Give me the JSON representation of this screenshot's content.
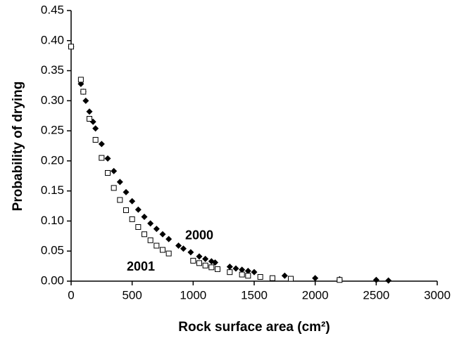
{
  "chart_data": {
    "type": "scatter",
    "xlabel": "Rock surface area (cm²)",
    "ylabel": "Probability of drying",
    "xlim": [
      0,
      3000
    ],
    "xticks": [
      0,
      500,
      1000,
      1500,
      2000,
      2500,
      3000
    ],
    "ylim": [
      0,
      0.45
    ],
    "yticks": [
      {
        "value": 0,
        "label": "0.00"
      },
      {
        "value": 0.05,
        "label": "0.05"
      },
      {
        "value": 0.1,
        "label": "0.10"
      },
      {
        "value": 0.15,
        "label": "0.15"
      },
      {
        "value": 0.2,
        "label": "0.20"
      },
      {
        "value": 0.25,
        "label": "0.25"
      },
      {
        "value": 0.3,
        "label": "0.30"
      },
      {
        "value": 0.35,
        "label": "0.35"
      },
      {
        "value": 0.4,
        "label": "0.40"
      },
      {
        "value": 0.45,
        "label": "0.45"
      }
    ],
    "series": [
      {
        "name": "2000",
        "color": "#000000",
        "marker": "diamond",
        "x": [
          0,
          80,
          100,
          120,
          150,
          180,
          200,
          250,
          300,
          350,
          400,
          450,
          500,
          550,
          600,
          650,
          700,
          750,
          800,
          880,
          920,
          980,
          1050,
          1100,
          1150,
          1180,
          1300,
          1350,
          1400,
          1450,
          1500,
          1750,
          2000,
          2200,
          2500,
          2600
        ],
        "values": [
          0.39,
          0.328,
          0.315,
          0.3,
          0.282,
          0.265,
          0.254,
          0.228,
          0.204,
          0.183,
          0.165,
          0.148,
          0.133,
          0.119,
          0.107,
          0.096,
          0.087,
          0.078,
          0.07,
          0.059,
          0.054,
          0.048,
          0.041,
          0.037,
          0.033,
          0.031,
          0.024,
          0.021,
          0.019,
          0.017,
          0.015,
          0.009,
          0.005,
          0.003,
          0.002,
          0.001
        ]
      },
      {
        "name": "2001",
        "color": "#000000",
        "marker": "square",
        "x": [
          0,
          80,
          100,
          150,
          200,
          250,
          300,
          350,
          400,
          450,
          500,
          550,
          600,
          650,
          700,
          750,
          800,
          1000,
          1050,
          1100,
          1150,
          1200,
          1300,
          1400,
          1450,
          1550,
          1650,
          1800,
          2200
        ],
        "values": [
          0.39,
          0.335,
          0.315,
          0.27,
          0.235,
          0.205,
          0.18,
          0.155,
          0.135,
          0.118,
          0.103,
          0.09,
          0.078,
          0.068,
          0.059,
          0.052,
          0.046,
          0.034,
          0.03,
          0.026,
          0.023,
          0.02,
          0.015,
          0.011,
          0.009,
          0.007,
          0.005,
          0.004,
          0.002
        ]
      }
    ],
    "annotations": [
      {
        "text": "2000",
        "x": 1050,
        "y": 0.075
      },
      {
        "text": "2001",
        "x": 571,
        "y": 0.023
      }
    ]
  }
}
